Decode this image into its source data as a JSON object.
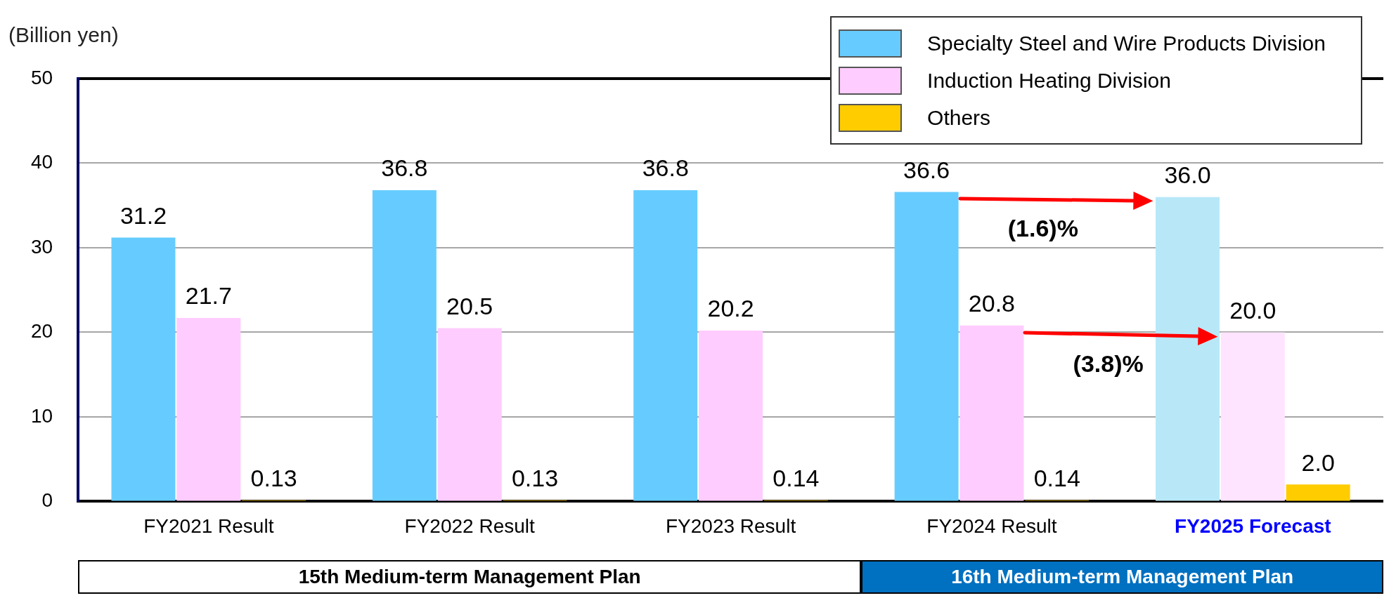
{
  "chart_data": {
    "type": "bar",
    "ylabel": "(Billion yen)",
    "categories": [
      "FY2021 Result",
      "FY2022 Result",
      "FY2023 Result",
      "FY2024 Result",
      "FY2025 Forecast"
    ],
    "series": [
      {
        "name": "Specialty Steel and Wire Products Division",
        "color": "#66ccff",
        "colors": [
          "#66ccff",
          "#66ccff",
          "#66ccff",
          "#66ccff",
          "#b8e8f8"
        ],
        "values": [
          31.2,
          36.8,
          36.8,
          36.6,
          36.0
        ],
        "value_labels": [
          "31.2",
          "36.8",
          "36.8",
          "36.6",
          "36.0"
        ]
      },
      {
        "name": "Induction Heating Division",
        "color": "#ffccff",
        "colors": [
          "#ffccff",
          "#ffccff",
          "#ffccff",
          "#ffccff",
          "#ffe4ff"
        ],
        "values": [
          21.7,
          20.5,
          20.2,
          20.8,
          20.0
        ],
        "value_labels": [
          "21.7",
          "20.5",
          "20.2",
          "20.8",
          "20.0"
        ]
      },
      {
        "name": "Others",
        "color": "#ffcc00",
        "values": [
          0.13,
          0.13,
          0.14,
          0.14,
          2.0
        ],
        "value_labels": [
          "0.13",
          "0.13",
          "0.14",
          "0.14",
          "2.0"
        ]
      }
    ],
    "ylim": [
      0,
      50
    ],
    "yticks": [
      0,
      10,
      20,
      30,
      40,
      50
    ],
    "grid": "y",
    "legend": "top right",
    "annotations": [
      "(1.6)%",
      "(3.8)%",
      "15th Medium-term Management Plan",
      "16th Medium-term Management Plan"
    ]
  }
}
